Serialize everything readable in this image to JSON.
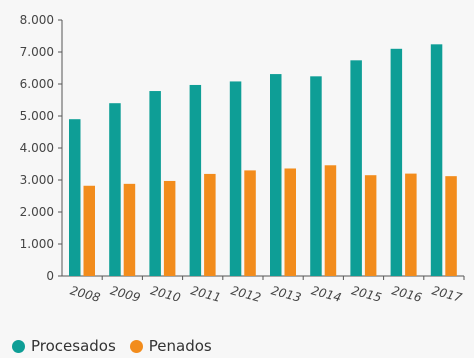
{
  "chart_data": {
    "type": "bar",
    "categories": [
      "2008",
      "2009",
      "2010",
      "2011",
      "2012",
      "2013",
      "2014",
      "2015",
      "2016",
      "2017"
    ],
    "series": [
      {
        "name": "Procesados",
        "color": "#0e9e96",
        "values": [
          4900,
          5400,
          5780,
          5970,
          6080,
          6310,
          6240,
          6740,
          7100,
          7240
        ]
      },
      {
        "name": "Penados",
        "color": "#f28c1c",
        "values": [
          2820,
          2880,
          2970,
          3190,
          3300,
          3360,
          3460,
          3150,
          3200,
          3120
        ]
      }
    ],
    "y_ticks": [
      "0",
      "1.000",
      "2.000",
      "3.000",
      "4.000",
      "5.000",
      "6.000",
      "7.000",
      "8.000"
    ],
    "ylim": [
      0,
      8000
    ],
    "title": "",
    "xlabel": "",
    "ylabel": "",
    "grid": false,
    "legend_position": "bottom-left"
  }
}
